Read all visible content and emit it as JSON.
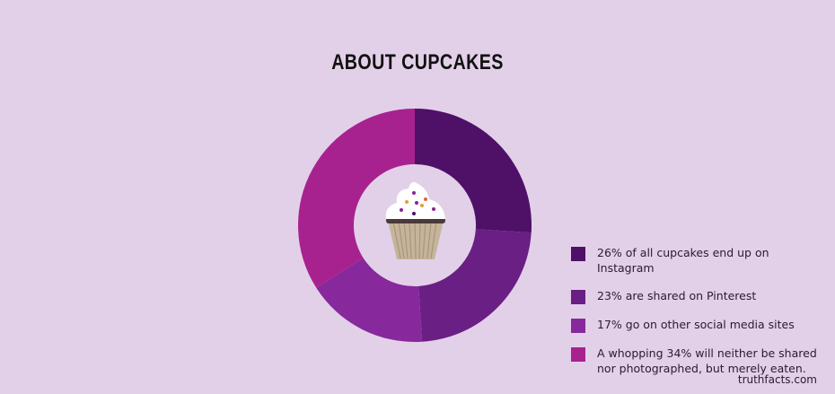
{
  "chart_data": {
    "type": "pie",
    "style": "donut",
    "title": "ABOUT CUPCAKES",
    "slices": [
      {
        "label": "26% of all cupcakes end up on Instagram",
        "value": 26,
        "color": "#4f1068"
      },
      {
        "label": "23% are shared on Pinterest",
        "value": 23,
        "color": "#6a1f84"
      },
      {
        "label": "17% go on other social media sites",
        "value": 17,
        "color": "#87289c"
      },
      {
        "label": "A whopping 34% will neither be shared\nnor photographed, but merely eaten.",
        "value": 34,
        "color": "#a8228f"
      }
    ],
    "legend_position": "right",
    "center_icon": "cupcake-icon"
  },
  "source": "truthfacts.com",
  "colors": {
    "background": "#e2d0e9"
  }
}
